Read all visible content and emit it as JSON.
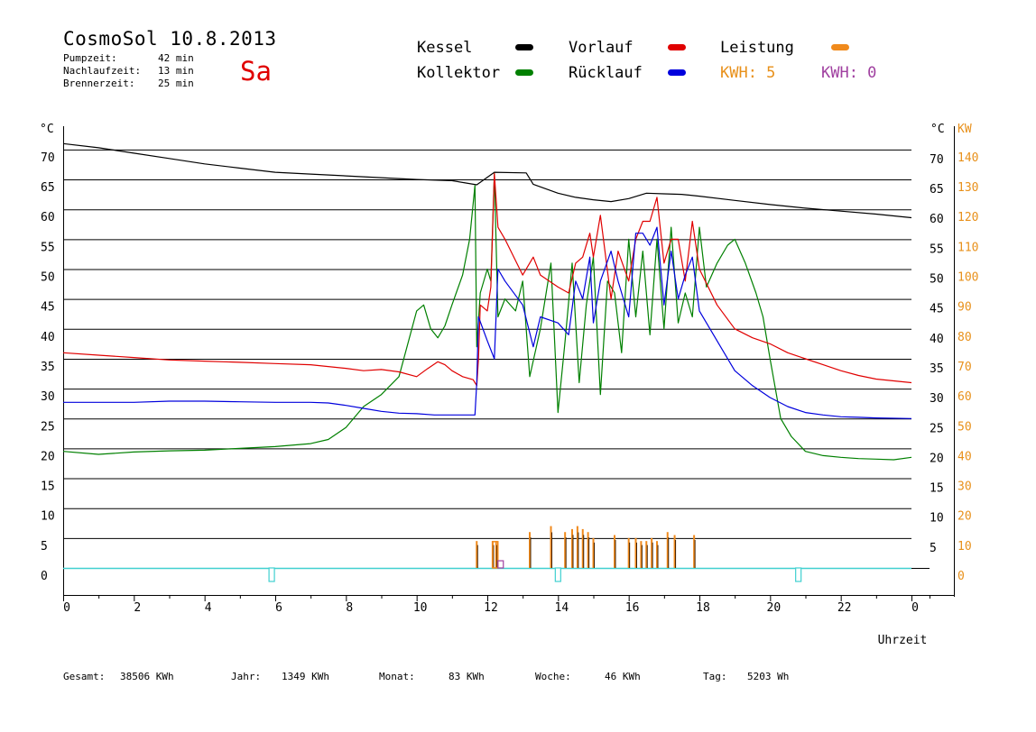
{
  "header": {
    "title": "CosmoSol 10.8.2013",
    "day": "Sa",
    "stats": [
      {
        "label": "Pumpzeit:",
        "value": "42 min"
      },
      {
        "label": "Nachlaufzeit:",
        "value": "13 min"
      },
      {
        "label": "Brennerzeit:",
        "value": "25 min"
      }
    ]
  },
  "legend": {
    "kessel": {
      "label": "Kessel",
      "color": "#000000"
    },
    "kollektor": {
      "label": "Kollektor",
      "color": "#008000"
    },
    "vorlauf": {
      "label": "Vorlauf",
      "color": "#e00000"
    },
    "ruecklauf": {
      "label": "Rücklauf",
      "color": "#0000dd"
    },
    "leistung": {
      "label": "Leistung",
      "color": "#f08a1c"
    },
    "kwh1": "KWH: 5",
    "kwh2": "KWH: 0"
  },
  "footer": {
    "items": [
      {
        "label": "Gesamt:",
        "value": "38506 KWh"
      },
      {
        "label": "Jahr:",
        "value": "1349 KWh"
      },
      {
        "label": "Monat:",
        "value": "83 KWh"
      },
      {
        "label": "Woche:",
        "value": "46 KWh"
      },
      {
        "label": "Tag:",
        "value": "5203 Wh"
      }
    ]
  },
  "chart_data": {
    "type": "line",
    "xlabel": "Uhrzeit",
    "ylabel_left": "°C",
    "ylabel_right_1": "°C",
    "ylabel_right_2": "KW",
    "xlim": [
      0,
      24
    ],
    "ylim": [
      0,
      75
    ],
    "x_tick_labels": [
      "0",
      "2",
      "4",
      "6",
      "8",
      "10",
      "12",
      "14",
      "16",
      "18",
      "20",
      "22",
      "0"
    ],
    "y_left_ticks": [
      0,
      5,
      10,
      15,
      20,
      25,
      30,
      35,
      40,
      45,
      50,
      55,
      60,
      65,
      70
    ],
    "y_right_ticks": [
      5,
      10,
      15,
      20,
      25,
      30,
      35,
      40,
      45,
      50,
      55,
      60,
      65,
      70
    ],
    "y_kw_ticks": [
      0,
      10,
      20,
      30,
      40,
      50,
      60,
      70,
      80,
      90,
      100,
      110,
      120,
      130,
      140
    ],
    "series": [
      {
        "name": "Kessel",
        "color": "#000000",
        "x": [
          0,
          1,
          2,
          3,
          4,
          5,
          6,
          7,
          8,
          9,
          10,
          11,
          11.7,
          12.2,
          13.1,
          13.3,
          14,
          14.5,
          15,
          15.5,
          16,
          16.5,
          17,
          17.5,
          18,
          19,
          20,
          21,
          22,
          23,
          24
        ],
        "y": [
          71,
          70.3,
          69.4,
          68.5,
          67.6,
          66.9,
          66.2,
          65.9,
          65.6,
          65.3,
          65.0,
          64.8,
          64.1,
          66.2,
          66.1,
          64.2,
          62.7,
          62.0,
          61.6,
          61.3,
          61.8,
          62.7,
          62.6,
          62.5,
          62.2,
          61.5,
          60.8,
          60.2,
          59.7,
          59.2,
          58.6
        ]
      },
      {
        "name": "Kollektor",
        "color": "#008000",
        "x": [
          0,
          1,
          2,
          3,
          4,
          5,
          6,
          7,
          7.5,
          8,
          8.5,
          9,
          9.5,
          10,
          10.2,
          10.4,
          10.6,
          10.8,
          11,
          11.3,
          11.5,
          11.65,
          11.7,
          11.8,
          12,
          12.1,
          12.2,
          12.3,
          12.5,
          12.8,
          13,
          13.2,
          13.5,
          13.8,
          14,
          14.2,
          14.4,
          14.6,
          14.8,
          15,
          15.2,
          15.4,
          15.6,
          15.8,
          16,
          16.2,
          16.4,
          16.6,
          16.8,
          17,
          17.2,
          17.4,
          17.6,
          17.8,
          18,
          18.2,
          18.5,
          18.8,
          19,
          19.3,
          19.6,
          19.8,
          20,
          20.3,
          20.6,
          21,
          21.5,
          22,
          22.5,
          23,
          23.5,
          24
        ],
        "y": [
          19.5,
          19,
          19.4,
          19.6,
          19.7,
          20,
          20.3,
          20.8,
          21.5,
          23.5,
          27,
          29,
          32,
          43,
          44,
          40,
          38.5,
          40.5,
          44,
          49,
          55,
          64,
          37,
          46,
          50,
          48,
          66,
          42,
          45,
          43,
          48,
          32,
          40,
          51,
          26,
          38,
          51,
          31,
          44,
          52,
          29,
          48,
          46,
          36,
          55,
          42,
          53,
          39,
          55,
          40,
          57,
          41,
          46,
          42,
          57,
          47,
          51,
          54,
          55,
          51,
          46,
          42,
          35,
          25,
          22,
          19.5,
          18.8,
          18.5,
          18.3,
          18.2,
          18.1,
          18.5
        ]
      },
      {
        "name": "Vorlauf",
        "color": "#e00000",
        "x": [
          0,
          1,
          2,
          3,
          4,
          5,
          6,
          7,
          8,
          8.5,
          9,
          9.5,
          10,
          10.3,
          10.6,
          10.8,
          11,
          11.3,
          11.6,
          11.7,
          11.75,
          11.8,
          12,
          12.1,
          12.2,
          12.3,
          12.5,
          13,
          13.3,
          13.5,
          14,
          14.3,
          14.5,
          14.7,
          14.9,
          15,
          15.2,
          15.5,
          15.7,
          16,
          16.2,
          16.4,
          16.6,
          16.8,
          17,
          17.2,
          17.4,
          17.6,
          17.8,
          18,
          18.5,
          19,
          19.5,
          20,
          20.5,
          21,
          21.5,
          22,
          22.5,
          23,
          24
        ],
        "y": [
          36,
          35.6,
          35.2,
          34.8,
          34.6,
          34.4,
          34.2,
          34.0,
          33.4,
          33.0,
          33.2,
          32.8,
          32.0,
          33.3,
          34.5,
          34.0,
          33.0,
          32.0,
          31.5,
          30.5,
          35,
          44,
          43,
          47,
          66,
          57,
          55,
          49,
          52,
          49,
          47,
          46,
          51,
          52,
          56,
          52,
          59,
          45,
          53,
          48,
          55,
          58,
          58,
          62,
          51,
          55,
          55,
          48,
          58,
          50,
          44,
          40,
          38.5,
          37.5,
          36,
          35,
          34,
          33,
          32.2,
          31.6,
          31.0
        ]
      },
      {
        "name": "Rücklauf",
        "color": "#0000dd",
        "x": [
          0,
          1,
          2,
          3,
          4,
          5,
          6,
          7,
          7.5,
          8,
          8.5,
          9,
          9.5,
          10,
          10.5,
          11,
          11.65,
          11.7,
          11.75,
          12,
          12.2,
          12.3,
          12.5,
          13,
          13.3,
          13.5,
          14,
          14.3,
          14.5,
          14.7,
          14.9,
          15,
          15.2,
          15.5,
          15.7,
          16,
          16.2,
          16.4,
          16.6,
          16.8,
          17,
          17.2,
          17.4,
          17.6,
          17.8,
          18,
          18.5,
          19,
          19.5,
          20,
          20.5,
          21,
          21.5,
          22,
          22.5,
          23,
          24
        ],
        "y": [
          27.7,
          27.7,
          27.7,
          27.9,
          27.9,
          27.8,
          27.7,
          27.7,
          27.6,
          27.2,
          26.7,
          26.2,
          25.9,
          25.8,
          25.6,
          25.6,
          25.6,
          31,
          42,
          38,
          35,
          50,
          48,
          44,
          37,
          42,
          41,
          39,
          48,
          45,
          52,
          41,
          48,
          53,
          48,
          42,
          56,
          56,
          54,
          57,
          44,
          53,
          45,
          49,
          52,
          43,
          38,
          33,
          30.5,
          28.5,
          27,
          26,
          25.6,
          25.3,
          25.2,
          25.1,
          25.0
        ]
      }
    ],
    "lines_in_chart": [
      "Kessel",
      "Kollektor",
      "Vorlauf",
      "Rücklauf",
      "Leistung"
    ]
  }
}
